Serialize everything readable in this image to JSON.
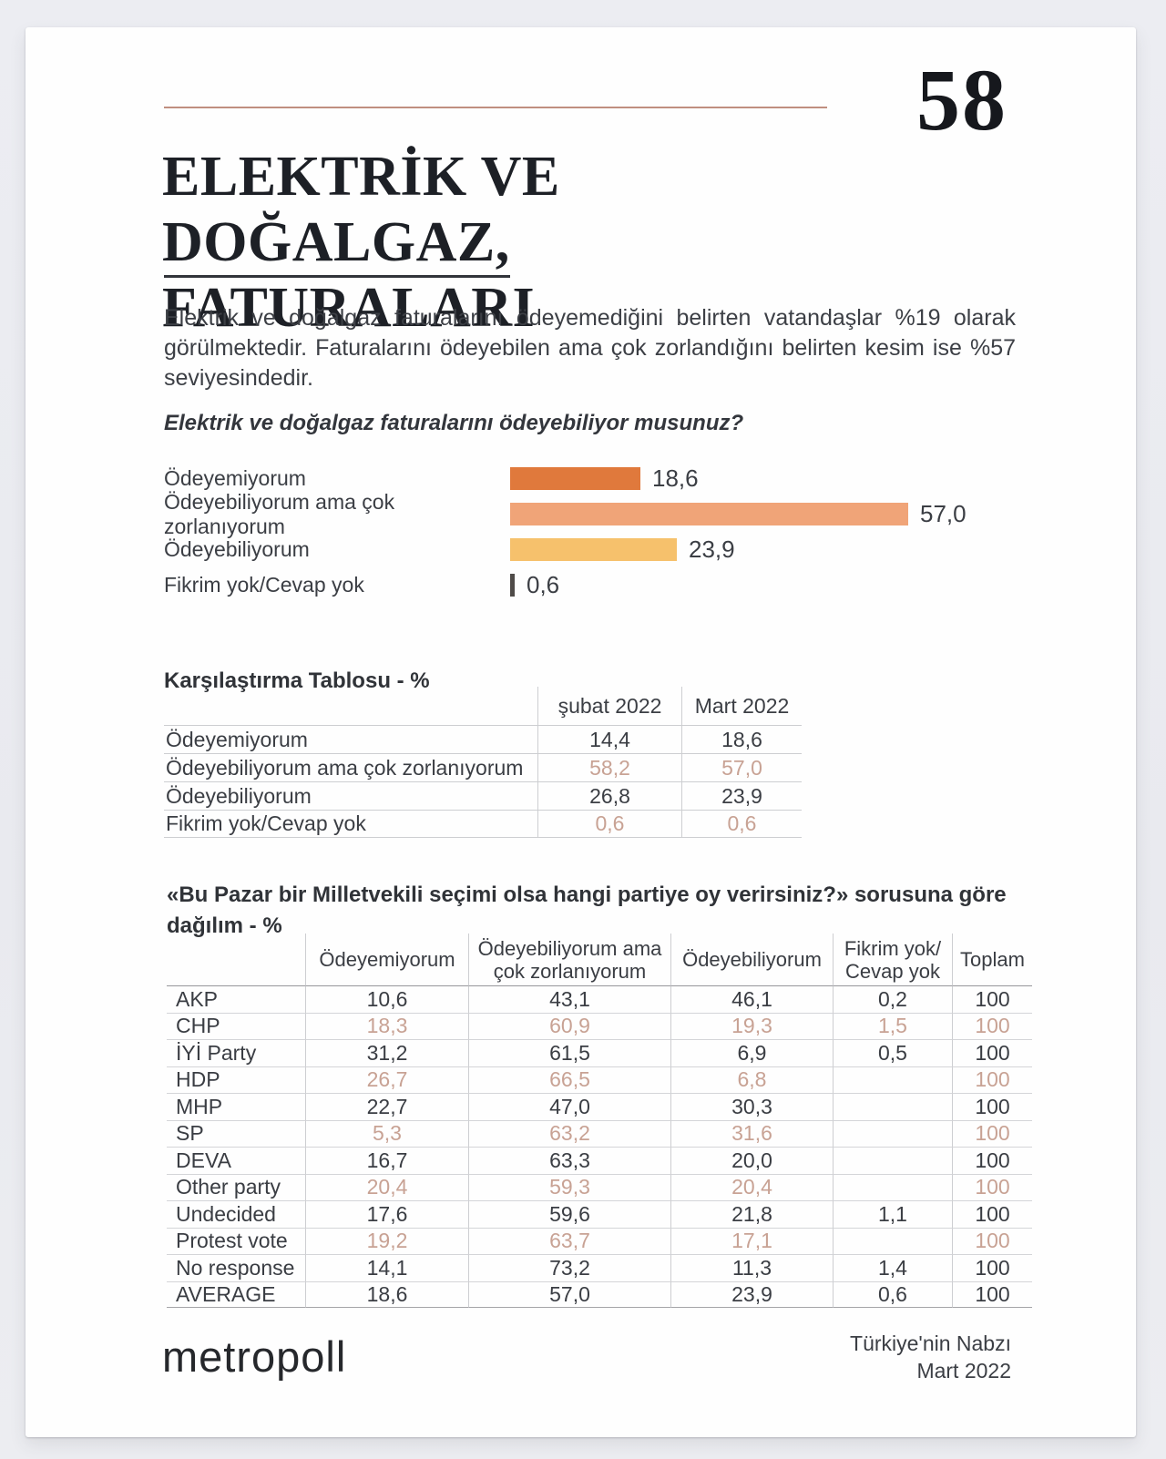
{
  "page": {
    "number": "58",
    "title_line1": "ELEKTRİK VE DOĞALGAZ,",
    "title_line2": "FATURALARI",
    "intro": "Elektrik ve doğalgaz faturalarını ödeyemediğini belirten vatandaşlar %19 olarak görülmektedir. Faturalarını ödeyebilen ama çok zorlandığını belirten kesim ise %57 seviyesindedir.",
    "question": "Elektrik ve doğalgaz faturalarını ödeyebiliyor musunuz?"
  },
  "chart_data": {
    "type": "bar",
    "orientation": "horizontal",
    "title": "Elektrik ve doğalgaz faturalarını ödeyebiliyor musunuz?",
    "categories": [
      "Ödeyemiyorum",
      "Ödeyebiliyorum ama çok zorlanıyorum",
      "Ödeyebiliyorum",
      "Fikrim yok/Cevap yok"
    ],
    "values": [
      18.6,
      57.0,
      23.9,
      0.6
    ],
    "value_labels": [
      "18,6",
      "57,0",
      "23,9",
      "0,6"
    ],
    "bar_colors": [
      "#e0793c",
      "#f0a478",
      "#f6c16c",
      "#4f4b48"
    ],
    "xlim": [
      0,
      60
    ],
    "grid": false,
    "legend": false
  },
  "comparison_table": {
    "title": "Karşılaştırma Tablosu - %",
    "columns": [
      "şubat 2022",
      "Mart 2022"
    ],
    "rows": [
      {
        "label": "Ödeyemiyorum",
        "values": [
          "14,4",
          "18,6"
        ],
        "highlight": false
      },
      {
        "label": "Ödeyebiliyorum ama çok zorlanıyorum",
        "values": [
          "58,2",
          "57,0"
        ],
        "highlight": true
      },
      {
        "label": "Ödeyebiliyorum",
        "values": [
          "26,8",
          "23,9"
        ],
        "highlight": false
      },
      {
        "label": "Fikrim yok/Cevap yok",
        "values": [
          "0,6",
          "0,6"
        ],
        "highlight": true
      }
    ]
  },
  "party_table": {
    "heading": "«Bu Pazar bir Milletvekili seçimi olsa hangi partiye oy verirsiniz?» sorusuna göre dağılım - %",
    "columns": [
      "",
      "Ödeyemiyorum",
      "Ödeyebiliyorum ama çok zorlanıyorum",
      "Ödeyebiliyorum",
      "Fikrim yok/ Cevap yok",
      "Toplam"
    ],
    "rows": [
      {
        "label": "AKP",
        "values": [
          "10,6",
          "43,1",
          "46,1",
          "0,2",
          "100"
        ],
        "highlight": false
      },
      {
        "label": "CHP",
        "values": [
          "18,3",
          "60,9",
          "19,3",
          "1,5",
          "100"
        ],
        "highlight": true
      },
      {
        "label": "İYİ Party",
        "values": [
          "31,2",
          "61,5",
          "6,9",
          "0,5",
          "100"
        ],
        "highlight": false
      },
      {
        "label": "HDP",
        "values": [
          "26,7",
          "66,5",
          "6,8",
          "",
          "100"
        ],
        "highlight": true
      },
      {
        "label": "MHP",
        "values": [
          "22,7",
          "47,0",
          "30,3",
          "",
          "100"
        ],
        "highlight": false
      },
      {
        "label": "SP",
        "values": [
          "5,3",
          "63,2",
          "31,6",
          "",
          "100"
        ],
        "highlight": true
      },
      {
        "label": "DEVA",
        "values": [
          "16,7",
          "63,3",
          "20,0",
          "",
          "100"
        ],
        "highlight": false
      },
      {
        "label": "Other party",
        "values": [
          "20,4",
          "59,3",
          "20,4",
          "",
          "100"
        ],
        "highlight": true
      },
      {
        "label": "Undecided",
        "values": [
          "17,6",
          "59,6",
          "21,8",
          "1,1",
          "100"
        ],
        "highlight": false
      },
      {
        "label": "Protest vote",
        "values": [
          "19,2",
          "63,7",
          "17,1",
          "",
          "100"
        ],
        "highlight": true
      },
      {
        "label": "No response",
        "values": [
          "14,1",
          "73,2",
          "11,3",
          "1,4",
          "100"
        ],
        "highlight": false
      },
      {
        "label": "AVERAGE",
        "values": [
          "18,6",
          "57,0",
          "23,9",
          "0,6",
          "100"
        ],
        "highlight": false
      }
    ]
  },
  "footer": {
    "logo": "metropoll",
    "right_line1": "Türkiye'nin Nabzı",
    "right_line2": "Mart 2022"
  },
  "colors": {
    "accent_line": "#c08f80",
    "highlight_text": "#c8a294",
    "bar_orange": "#e0793c",
    "bar_salmon": "#f0a478",
    "bar_amber": "#f6c16c",
    "bar_dark": "#4f4b48"
  }
}
